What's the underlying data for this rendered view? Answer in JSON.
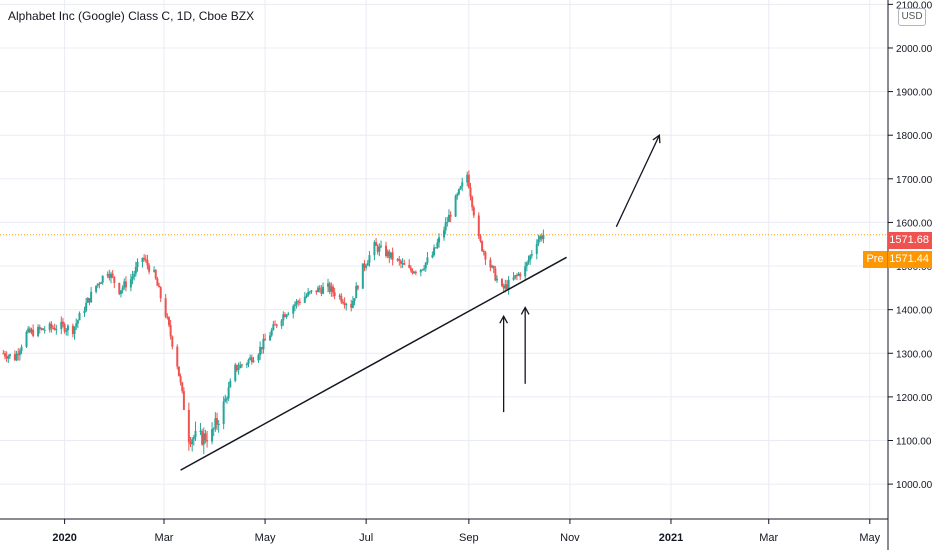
{
  "header": {
    "title": "Alphabet Inc (Google) Class C, 1D, Cboe BZX"
  },
  "currency_badge": "USD",
  "price_tags": {
    "last": "1571.68",
    "pre_label": "Pre",
    "pre_value": "1571.44"
  },
  "colors": {
    "up": "#26a69a",
    "down": "#ef5350",
    "grid": "#e9ecf3",
    "pre": "#ff9800"
  },
  "chart_data": {
    "type": "candlestick",
    "title": "Alphabet Inc (Google) Class C, 1D, Cboe BZX",
    "y_axis": {
      "ylim": [
        920,
        2110
      ],
      "ticks": [
        {
          "value": 1000,
          "label": "1000.00"
        },
        {
          "value": 1100,
          "label": "1100.00"
        },
        {
          "value": 1200,
          "label": "1200.00"
        },
        {
          "value": 1300,
          "label": "1300.00"
        },
        {
          "value": 1400,
          "label": "1400.00"
        },
        {
          "value": 1500,
          "label": "1500.00"
        },
        {
          "value": 1600,
          "label": "1600.00"
        },
        {
          "value": 1700,
          "label": "1700.00"
        },
        {
          "value": 1800,
          "label": "1800.00"
        },
        {
          "value": 1900,
          "label": "1900.00"
        },
        {
          "value": 2000,
          "label": "2000.00"
        },
        {
          "value": 2100,
          "label": "2100.00"
        }
      ]
    },
    "x_axis": {
      "xlim": [
        "2019-11-23",
        "2021-05-12"
      ],
      "ticks": [
        {
          "date": "2020-01-01",
          "label": "2020",
          "bold": true
        },
        {
          "date": "2020-03-01",
          "label": "Mar"
        },
        {
          "date": "2020-05-01",
          "label": "May"
        },
        {
          "date": "2020-07-01",
          "label": "Jul"
        },
        {
          "date": "2020-09-01",
          "label": "Sep"
        },
        {
          "date": "2020-11-01",
          "label": "Nov"
        },
        {
          "date": "2021-01-01",
          "label": "2021",
          "bold": true
        },
        {
          "date": "2021-03-01",
          "label": "Mar"
        },
        {
          "date": "2021-05-01",
          "label": "May"
        }
      ]
    },
    "price_line": 1571.68,
    "series": [
      {
        "date": "2019-11-25",
        "value": 1300
      },
      {
        "date": "2019-12-02",
        "value": 1290
      },
      {
        "date": "2019-12-09",
        "value": 1345
      },
      {
        "date": "2019-12-16",
        "value": 1352
      },
      {
        "date": "2019-12-23",
        "value": 1358
      },
      {
        "date": "2019-12-30",
        "value": 1362
      },
      {
        "date": "2020-01-06",
        "value": 1355
      },
      {
        "date": "2020-01-13",
        "value": 1405
      },
      {
        "date": "2020-01-20",
        "value": 1455
      },
      {
        "date": "2020-01-27",
        "value": 1490
      },
      {
        "date": "2020-02-03",
        "value": 1445
      },
      {
        "date": "2020-02-10",
        "value": 1470
      },
      {
        "date": "2020-02-17",
        "value": 1520
      },
      {
        "date": "2020-02-24",
        "value": 1480
      },
      {
        "date": "2020-03-02",
        "value": 1390
      },
      {
        "date": "2020-03-09",
        "value": 1275
      },
      {
        "date": "2020-03-16",
        "value": 1110
      },
      {
        "date": "2020-03-23",
        "value": 1105
      },
      {
        "date": "2020-03-30",
        "value": 1115
      },
      {
        "date": "2020-04-06",
        "value": 1180
      },
      {
        "date": "2020-04-13",
        "value": 1265
      },
      {
        "date": "2020-04-20",
        "value": 1280
      },
      {
        "date": "2020-04-27",
        "value": 1305
      },
      {
        "date": "2020-05-04",
        "value": 1345
      },
      {
        "date": "2020-05-11",
        "value": 1385
      },
      {
        "date": "2020-05-18",
        "value": 1410
      },
      {
        "date": "2020-05-25",
        "value": 1430
      },
      {
        "date": "2020-06-01",
        "value": 1445
      },
      {
        "date": "2020-06-08",
        "value": 1450
      },
      {
        "date": "2020-06-15",
        "value": 1430
      },
      {
        "date": "2020-06-22",
        "value": 1410
      },
      {
        "date": "2020-06-29",
        "value": 1495
      },
      {
        "date": "2020-07-06",
        "value": 1545
      },
      {
        "date": "2020-07-13",
        "value": 1530
      },
      {
        "date": "2020-07-20",
        "value": 1510
      },
      {
        "date": "2020-07-27",
        "value": 1490
      },
      {
        "date": "2020-08-03",
        "value": 1495
      },
      {
        "date": "2020-08-10",
        "value": 1525
      },
      {
        "date": "2020-08-17",
        "value": 1585
      },
      {
        "date": "2020-08-24",
        "value": 1650
      },
      {
        "date": "2020-08-31",
        "value": 1710
      },
      {
        "date": "2020-09-07",
        "value": 1560
      },
      {
        "date": "2020-09-14",
        "value": 1500
      },
      {
        "date": "2020-09-21",
        "value": 1445
      },
      {
        "date": "2020-09-28",
        "value": 1470
      },
      {
        "date": "2020-10-05",
        "value": 1495
      },
      {
        "date": "2020-10-12",
        "value": 1560
      },
      {
        "date": "2020-10-16",
        "value": 1572
      }
    ]
  },
  "annotations": {
    "trendline": {
      "from": {
        "date": "2020-03-11",
        "value": 1032
      },
      "to": {
        "date": "2020-10-30",
        "value": 1520
      }
    },
    "arrow_up_right": {
      "from": {
        "date": "2020-11-29",
        "value": 1590
      },
      "to": {
        "date": "2020-12-25",
        "value": 1800
      }
    },
    "arrow_1": {
      "from": {
        "date": "2020-09-22",
        "value": 1165
      },
      "to": {
        "date": "2020-09-22",
        "value": 1385
      }
    },
    "arrow_2": {
      "from": {
        "date": "2020-10-05",
        "value": 1230
      },
      "to": {
        "date": "2020-10-05",
        "value": 1405
      }
    }
  }
}
